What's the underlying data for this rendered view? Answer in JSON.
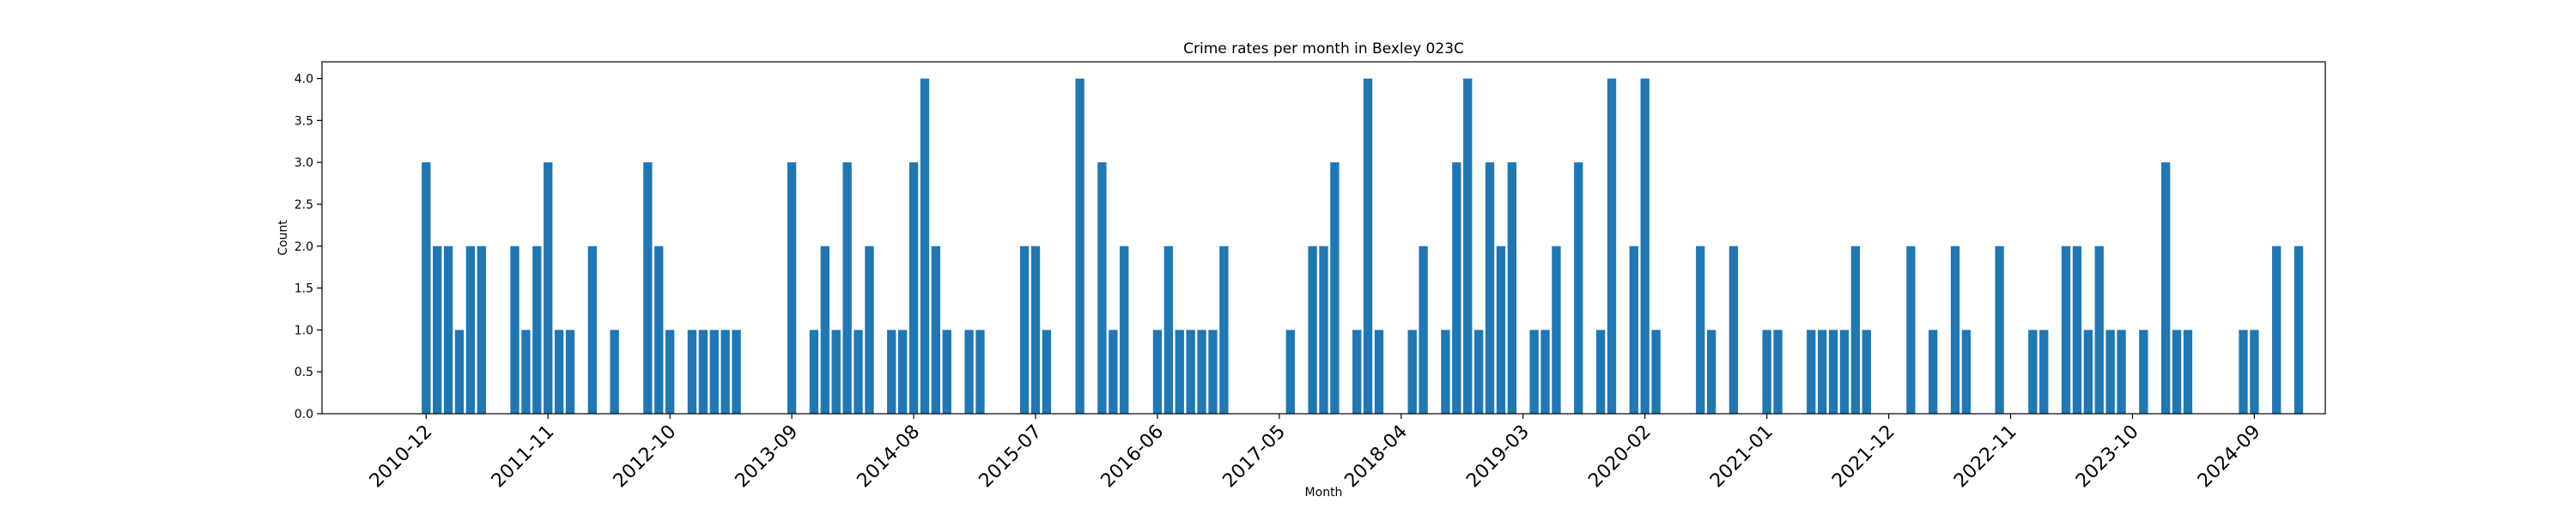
{
  "chart_data": {
    "type": "bar",
    "title": "Crime rates per month in Bexley 023C",
    "xlabel": "Month",
    "ylabel": "Count",
    "ylim": [
      0,
      4.2
    ],
    "yticks": [
      "0.0",
      "0.5",
      "1.0",
      "1.5",
      "2.0",
      "2.5",
      "3.0",
      "3.5",
      "4.0"
    ],
    "bar_color": "#1f77b4",
    "grid": false,
    "x_start": "2010-12",
    "xticks": [
      "2010-12",
      "2011-11",
      "2012-10",
      "2013-09",
      "2014-08",
      "2015-07",
      "2016-06",
      "2017-05",
      "2018-04",
      "2019-03",
      "2020-02",
      "2021-01",
      "2021-12",
      "2022-11",
      "2023-10",
      "2024-09"
    ],
    "months": [
      "2010-12",
      "2011-01",
      "2011-02",
      "2011-03",
      "2011-04",
      "2011-05",
      "2011-08",
      "2011-09",
      "2011-10",
      "2011-11",
      "2011-12",
      "2012-01",
      "2012-03",
      "2012-05",
      "2012-08",
      "2012-09",
      "2012-10",
      "2012-12",
      "2013-01",
      "2013-02",
      "2013-03",
      "2013-04",
      "2013-09",
      "2013-11",
      "2013-12",
      "2014-01",
      "2014-02",
      "2014-03",
      "2014-04",
      "2014-06",
      "2014-07",
      "2014-08",
      "2014-09",
      "2014-10",
      "2014-11",
      "2015-01",
      "2015-02",
      "2015-06",
      "2015-07",
      "2015-08",
      "2015-11",
      "2016-01",
      "2016-02",
      "2016-03",
      "2016-06",
      "2016-07",
      "2016-08",
      "2016-09",
      "2016-10",
      "2016-11",
      "2016-12",
      "2017-06",
      "2017-08",
      "2017-09",
      "2017-10",
      "2017-12",
      "2018-01",
      "2018-02",
      "2018-05",
      "2018-06",
      "2018-08",
      "2018-09",
      "2018-10",
      "2018-11",
      "2018-12",
      "2019-01",
      "2019-02",
      "2019-04",
      "2019-05",
      "2019-06",
      "2019-08",
      "2019-10",
      "2019-11",
      "2020-01",
      "2020-02",
      "2020-03",
      "2020-07",
      "2020-08",
      "2020-10",
      "2021-01",
      "2021-02",
      "2021-05",
      "2021-06",
      "2021-07",
      "2021-08",
      "2021-09",
      "2021-10",
      "2022-02",
      "2022-04",
      "2022-06",
      "2022-07",
      "2022-10",
      "2023-01",
      "2023-02",
      "2023-04",
      "2023-05",
      "2023-06",
      "2023-07",
      "2023-08",
      "2023-09",
      "2023-11",
      "2024-01",
      "2024-02",
      "2024-03",
      "2024-08",
      "2024-09",
      "2024-11",
      "2025-01"
    ],
    "values": [
      3,
      2,
      2,
      1,
      2,
      2,
      2,
      1,
      2,
      3,
      1,
      1,
      2,
      1,
      3,
      2,
      1,
      1,
      1,
      1,
      1,
      1,
      3,
      1,
      2,
      1,
      3,
      1,
      2,
      1,
      1,
      3,
      4,
      2,
      1,
      1,
      1,
      2,
      2,
      1,
      4,
      3,
      1,
      2,
      1,
      2,
      1,
      1,
      1,
      1,
      2,
      1,
      2,
      2,
      3,
      1,
      4,
      1,
      1,
      2,
      1,
      3,
      4,
      1,
      3,
      2,
      3,
      1,
      1,
      2,
      3,
      1,
      4,
      2,
      4,
      1,
      2,
      1,
      2,
      1,
      1,
      1,
      1,
      1,
      1,
      2,
      1,
      2,
      1,
      2,
      1,
      2,
      1,
      1,
      2,
      2,
      1,
      2,
      1,
      1,
      1,
      3,
      1,
      1,
      1,
      1,
      2,
      2
    ]
  }
}
